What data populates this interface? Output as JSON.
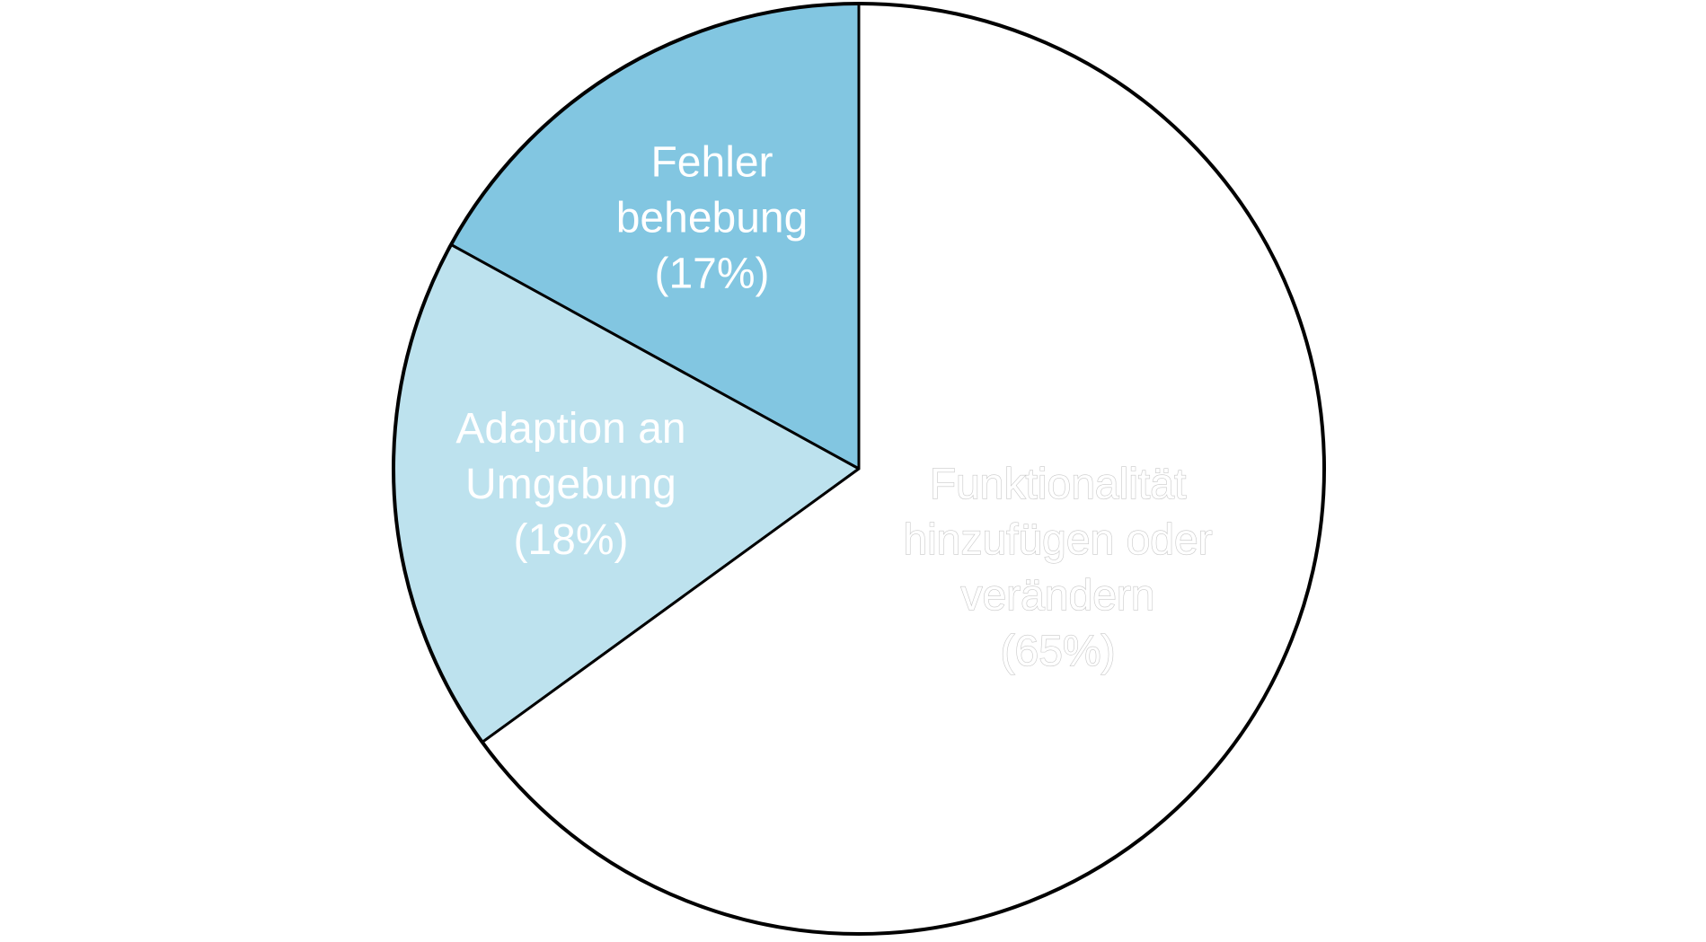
{
  "chart_data": {
    "type": "pie",
    "title": "",
    "slices": [
      {
        "label_lines": [
          "Fehler",
          "behebung",
          "(17%)"
        ],
        "value": 17,
        "color": "#82c6e1"
      },
      {
        "label_lines": [
          "Adaption an",
          "Umgebung",
          "(18%)"
        ],
        "value": 18,
        "color": "#bde2ee"
      },
      {
        "label_lines": [
          "Funktionalität",
          "hinzufügen oder",
          "verändern",
          "(65%)"
        ],
        "value": 65,
        "color": "#ffffff"
      }
    ],
    "start_angle_deg": 0,
    "direction": "counterclockwise",
    "legend": "none"
  }
}
